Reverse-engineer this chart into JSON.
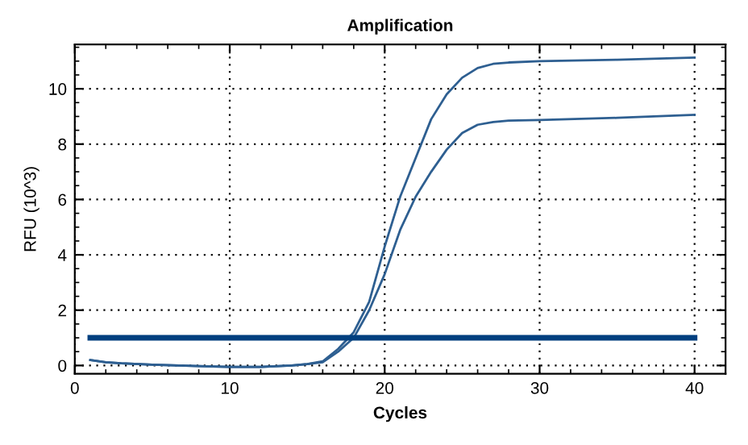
{
  "chart_data": {
    "type": "line",
    "title": "Amplification",
    "xlabel": "Cycles",
    "ylabel": "RFU (10^3)",
    "xlim": [
      0,
      42
    ],
    "ylim": [
      -0.3,
      11.6
    ],
    "xticks": [
      0,
      10,
      20,
      30,
      40
    ],
    "yticks": [
      0,
      2,
      4,
      6,
      8,
      10
    ],
    "grid": true,
    "marker": "none",
    "line_style": "solid",
    "series": [
      {
        "color": "#2e5f91",
        "x": [
          1,
          2,
          3,
          5,
          8,
          10,
          12,
          14,
          15,
          16,
          17,
          18,
          19,
          20,
          21,
          22,
          23,
          24,
          25,
          26,
          27,
          28,
          30,
          35,
          40
        ],
        "values": [
          0.2,
          0.12,
          0.08,
          0.03,
          -0.02,
          -0.05,
          -0.05,
          0.0,
          0.05,
          0.15,
          0.6,
          1.2,
          2.3,
          4.3,
          6.1,
          7.5,
          8.9,
          9.8,
          10.4,
          10.75,
          10.9,
          10.95,
          11.0,
          11.05,
          11.13
        ]
      },
      {
        "color": "#2e5f91",
        "x": [
          1,
          2,
          3,
          5,
          8,
          10,
          12,
          14,
          15,
          16,
          17,
          18,
          19,
          20,
          21,
          22,
          23,
          24,
          25,
          26,
          27,
          28,
          30,
          35,
          40
        ],
        "values": [
          0.2,
          0.12,
          0.08,
          0.03,
          -0.02,
          -0.05,
          -0.05,
          0.0,
          0.05,
          0.12,
          0.5,
          1.0,
          2.0,
          3.3,
          4.9,
          6.1,
          7.0,
          7.8,
          8.4,
          8.7,
          8.8,
          8.85,
          8.87,
          8.95,
          9.06
        ]
      },
      {
        "color": "#003f7f",
        "x": [
          1,
          40
        ],
        "values": [
          1.0,
          1.0
        ]
      }
    ]
  }
}
